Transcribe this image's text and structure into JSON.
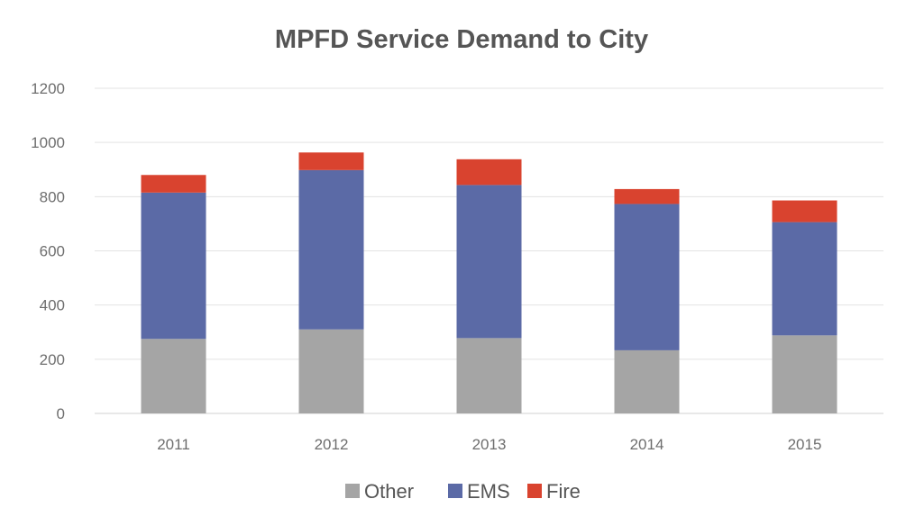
{
  "chart_data": {
    "type": "bar",
    "stacked": true,
    "title": "MPFD Service Demand to City",
    "xlabel": "",
    "ylabel": "",
    "categories": [
      "2011",
      "2012",
      "2013",
      "2014",
      "2015"
    ],
    "ylim": [
      0,
      1200
    ],
    "yticks": [
      0,
      200,
      400,
      600,
      800,
      1000,
      1200
    ],
    "grid": true,
    "legend_position": "bottom",
    "series": [
      {
        "name": "Other",
        "color": "#a5a5a5",
        "values": [
          275,
          310,
          278,
          233,
          288
        ]
      },
      {
        "name": "EMS",
        "color": "#5b6aa6",
        "values": [
          540,
          588,
          565,
          540,
          418
        ]
      },
      {
        "name": "Fire",
        "color": "#d9432f",
        "values": [
          65,
          65,
          95,
          55,
          80
        ]
      }
    ]
  }
}
